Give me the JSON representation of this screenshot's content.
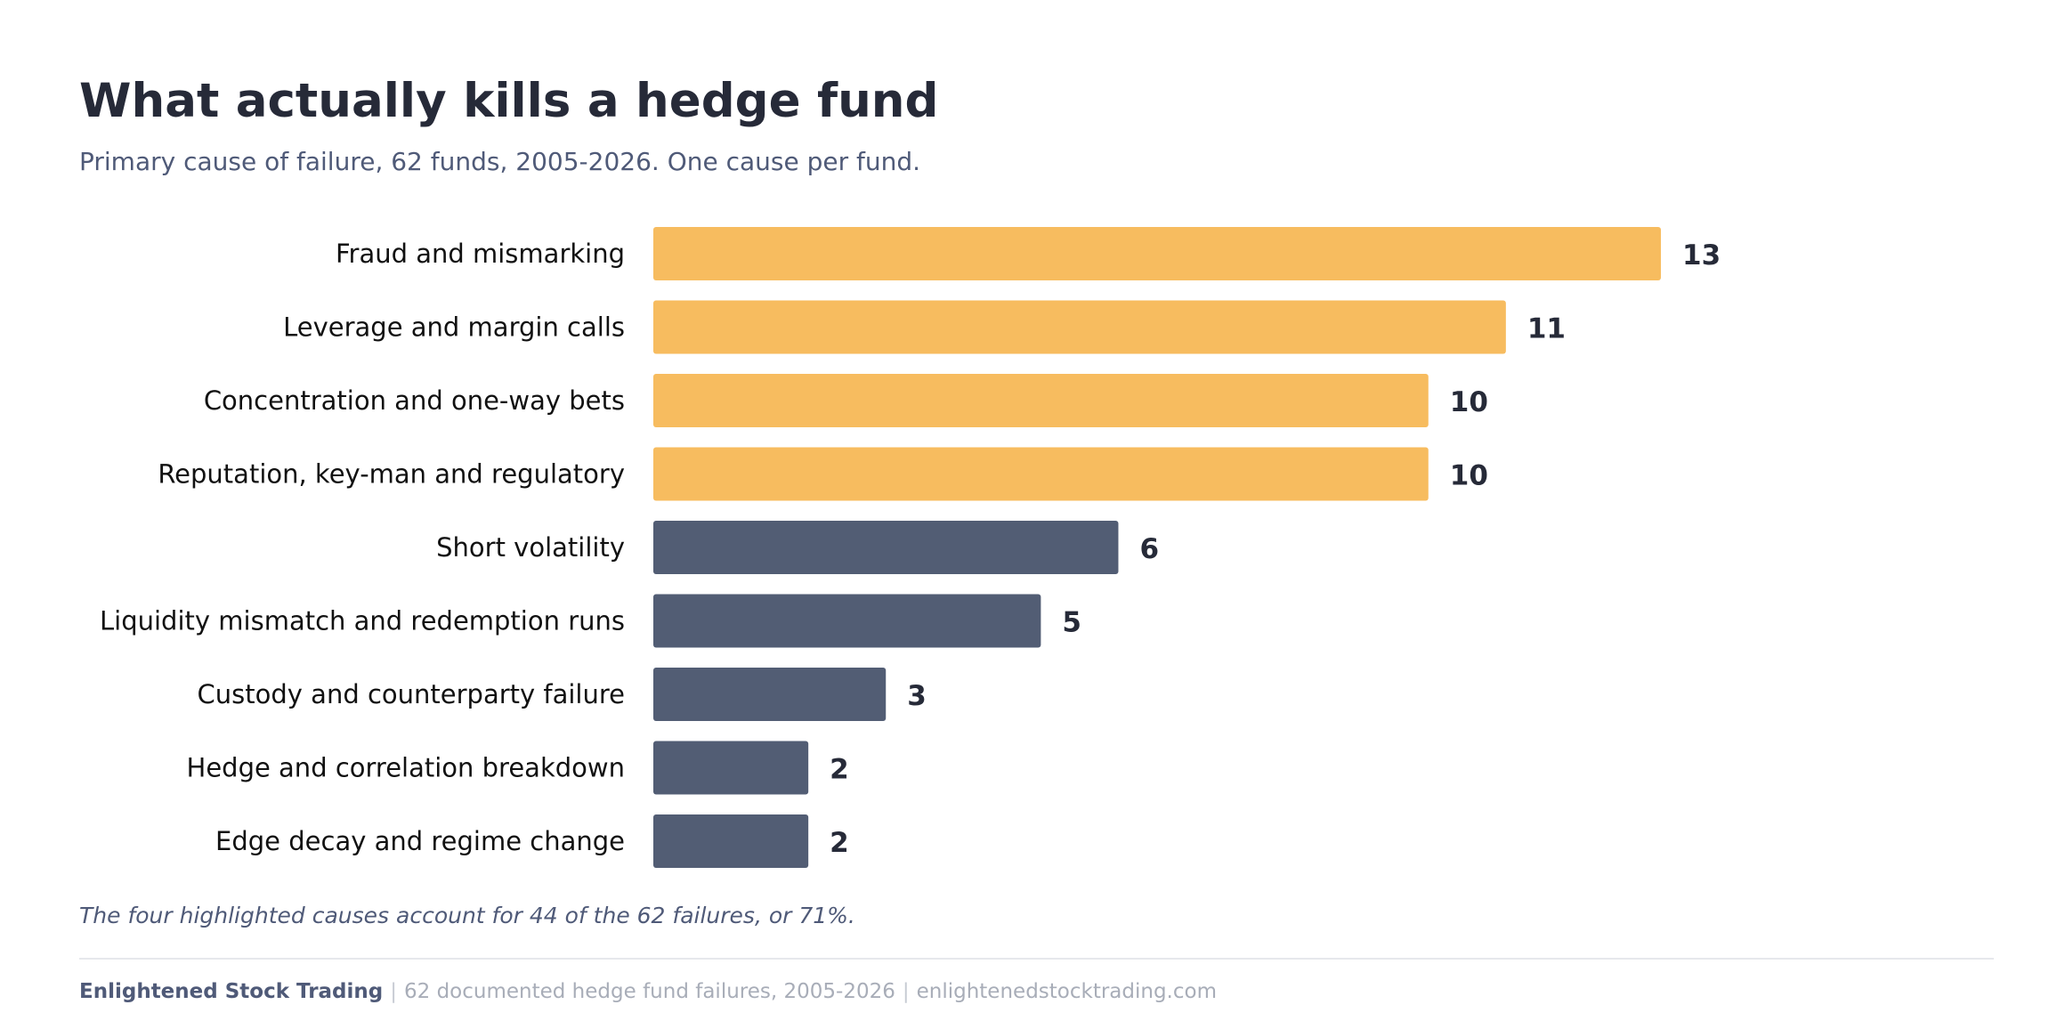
{
  "header": {
    "title": "What actually kills a hedge fund",
    "subtitle": "Primary cause of failure, 62 funds, 2005-2026. One cause per fund."
  },
  "chart_data": {
    "type": "bar",
    "orientation": "horizontal",
    "categories": [
      "Fraud and mismarking",
      "Leverage and margin calls",
      "Concentration and one-way bets",
      "Reputation, key-man and regulatory",
      "Short volatility",
      "Liquidity mismatch and redemption runs",
      "Custody and counterparty failure",
      "Hedge and correlation breakdown",
      "Edge decay and regime change"
    ],
    "values": [
      13,
      11,
      10,
      10,
      6,
      5,
      3,
      2,
      2
    ],
    "highlighted": [
      true,
      true,
      true,
      true,
      false,
      false,
      false,
      false,
      false
    ],
    "xlim": [
      0,
      13
    ],
    "grid": false,
    "data_labels": true,
    "colors": {
      "highlight": "#f7bc5f",
      "default": "#525d74"
    }
  },
  "note": "The four highlighted causes account for 44 of the 62 failures, or 71%.",
  "footer": {
    "brand": "Enlightened Stock Trading",
    "separator": "|",
    "source": "62 documented hedge fund failures, 2005-2026",
    "site": "enlightenedstocktrading.com"
  }
}
